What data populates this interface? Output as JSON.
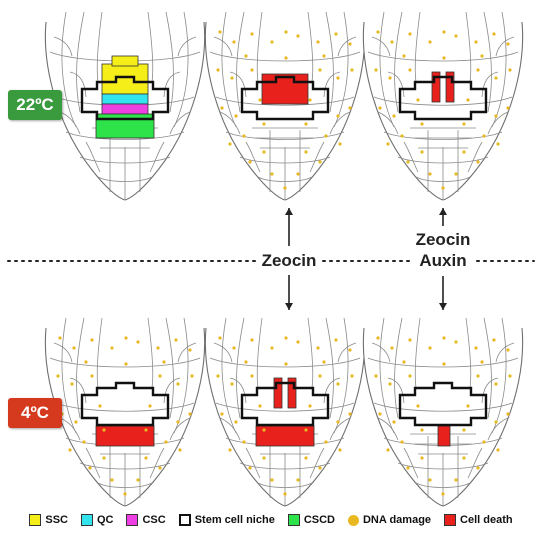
{
  "conditions": {
    "warm": {
      "label": "22ºC",
      "color": "#3a9a3e"
    },
    "cold": {
      "label": "4ºC",
      "color": "#d63a1e"
    }
  },
  "treatments": {
    "middle": [
      "Zeocin"
    ],
    "right": [
      "Zeocin",
      "Auxin"
    ]
  },
  "legend": [
    {
      "key": "ssc",
      "label": "SSC",
      "color": "#f5ee18",
      "style": "box"
    },
    {
      "key": "qc",
      "label": "QC",
      "color": "#33e4ee",
      "style": "box"
    },
    {
      "key": "csc",
      "label": "CSC",
      "color": "#ee3fe2",
      "style": "box"
    },
    {
      "key": "niche",
      "label": "Stem cell niche",
      "color": "#111111",
      "style": "outline"
    },
    {
      "key": "cscd",
      "label": "CSCD",
      "color": "#2ee24a",
      "style": "box"
    },
    {
      "key": "dna",
      "label": "DNA damage",
      "color": "#e9b820",
      "style": "dot"
    },
    {
      "key": "death",
      "label": "Cell death",
      "color": "#e8211d",
      "style": "box"
    }
  ],
  "colors": {
    "cell_line": "#8a8a8a",
    "niche_outline": "#111111",
    "dotted_divider": "#222222",
    "arrow": "#222222"
  },
  "panels": [
    {
      "id": "warm-control",
      "condition": "warm",
      "ssc": "yellow",
      "qc": "cyan",
      "csc": "magenta",
      "cscd": "green",
      "dna_damage": false,
      "dead_stem_cells": "none",
      "dead_cscd": false
    },
    {
      "id": "warm-zeocin",
      "condition": "warm",
      "ssc": "red",
      "dna_damage": true,
      "dead_stem_cells": "all",
      "dead_cscd": false
    },
    {
      "id": "warm-zeocin-auxin",
      "condition": "warm",
      "ssc": "red",
      "dna_damage": true,
      "dead_stem_cells": "partial",
      "dead_cscd": false
    },
    {
      "id": "cold-control",
      "condition": "cold",
      "dna_damage": true,
      "dead_stem_cells": "none",
      "dead_cscd": true
    },
    {
      "id": "cold-zeocin",
      "condition": "cold",
      "dna_damage": true,
      "dead_stem_cells": "partial",
      "dead_cscd": true
    },
    {
      "id": "cold-zeocin-auxin",
      "condition": "cold",
      "dna_damage": true,
      "dead_stem_cells": "none",
      "dead_cscd": "single"
    }
  ]
}
